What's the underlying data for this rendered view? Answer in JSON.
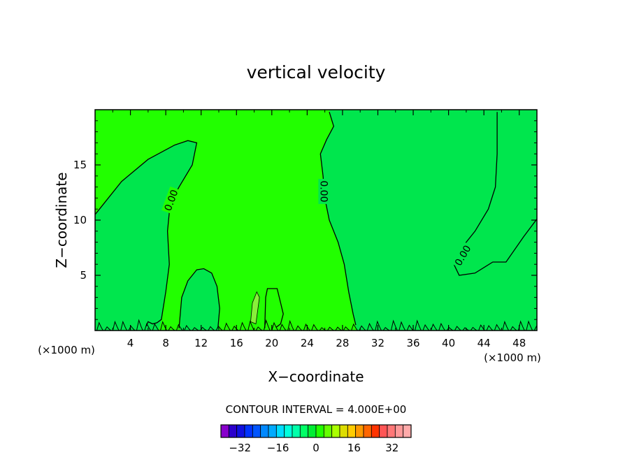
{
  "chart_data": {
    "type": "heatmap",
    "title": "vertical velocity",
    "xlabel": "X−coordinate",
    "ylabel": "Z−coordinate",
    "x_unit_left": "(×1000 m)",
    "x_unit_right": "(×1000 m)",
    "xlim": [
      0,
      50
    ],
    "ylim": [
      0,
      20
    ],
    "x_ticks": [
      4,
      8,
      12,
      16,
      20,
      24,
      28,
      32,
      36,
      40,
      44,
      48
    ],
    "y_ticks": [
      5,
      10,
      15
    ],
    "contour_label": "0.00",
    "contour_interval_text": "CONTOUR INTERVAL = 4.000E+00",
    "colors": {
      "positive_fill": "#22ff00",
      "negative_fill": "#00e64d",
      "weak_up_fill": "#88f03a"
    },
    "zero_contours": [
      {
        "name": "left-cell",
        "points": [
          [
            0,
            10.5
          ],
          [
            3,
            13.5
          ],
          [
            6,
            15.5
          ],
          [
            9,
            16.8
          ],
          [
            10.5,
            17.2
          ],
          [
            11.5,
            17
          ],
          [
            11,
            15
          ],
          [
            9.5,
            13
          ],
          [
            8.5,
            11.5
          ],
          [
            8.2,
            9
          ],
          [
            8.4,
            6
          ],
          [
            8,
            3.5
          ],
          [
            7.5,
            1
          ],
          [
            7,
            0.7
          ],
          [
            6.5,
            0.6
          ],
          [
            6,
            0.8
          ],
          [
            5.8,
            0.4
          ]
        ]
      },
      {
        "name": "middle-cell",
        "points": [
          [
            26.5,
            19.8
          ],
          [
            27,
            18.5
          ],
          [
            26.2,
            17.3
          ],
          [
            25.5,
            16
          ],
          [
            25.8,
            14
          ],
          [
            26,
            12
          ],
          [
            26.5,
            10
          ],
          [
            27.5,
            8
          ],
          [
            28.2,
            6
          ],
          [
            28.7,
            3.5
          ],
          [
            29.2,
            1.5
          ],
          [
            29.5,
            0.5
          ]
        ]
      },
      {
        "name": "right-cell",
        "points": [
          [
            45.5,
            19.8
          ],
          [
            45.5,
            16
          ],
          [
            45.3,
            13
          ],
          [
            44.5,
            11
          ],
          [
            43,
            9
          ],
          [
            41.5,
            7.5
          ],
          [
            40.6,
            6
          ],
          [
            41.2,
            5
          ],
          [
            43,
            5.2
          ],
          [
            45,
            6.2
          ],
          [
            46.5,
            6.2
          ],
          [
            48.5,
            8.5
          ],
          [
            50,
            10.1
          ]
        ]
      },
      {
        "name": "low-cell-1",
        "points": [
          [
            9.5,
            0.2
          ],
          [
            9.8,
            3
          ],
          [
            10.5,
            4.5
          ],
          [
            11.5,
            5.5
          ],
          [
            12.3,
            5.6
          ],
          [
            13.2,
            5.2
          ],
          [
            13.8,
            4
          ],
          [
            14.1,
            2
          ],
          [
            13.9,
            0.2
          ]
        ]
      },
      {
        "name": "low-cell-2",
        "points": [
          [
            19.2,
            0.2
          ],
          [
            19.3,
            3
          ],
          [
            19.5,
            3.8
          ],
          [
            20.6,
            3.8
          ],
          [
            21,
            2.5
          ],
          [
            21.3,
            1.5
          ],
          [
            21,
            0.6
          ],
          [
            20.5,
            0.3
          ]
        ]
      }
    ],
    "negative_regions": [
      {
        "points": [
          [
            0,
            0
          ],
          [
            0,
            10.5
          ],
          [
            3,
            13.5
          ],
          [
            6,
            15.5
          ],
          [
            9,
            16.8
          ],
          [
            10.5,
            17.2
          ],
          [
            11.5,
            17
          ],
          [
            11,
            15
          ],
          [
            9.5,
            13
          ],
          [
            8.5,
            11.5
          ],
          [
            8.2,
            9
          ],
          [
            8.4,
            6
          ],
          [
            8,
            3.5
          ],
          [
            7.5,
            1
          ],
          [
            7.2,
            0
          ]
        ]
      },
      {
        "points": [
          [
            9.6,
            0
          ],
          [
            9.8,
            3
          ],
          [
            10.5,
            4.5
          ],
          [
            11.5,
            5.5
          ],
          [
            12.3,
            5.6
          ],
          [
            13.2,
            5.2
          ],
          [
            13.8,
            4
          ],
          [
            14.1,
            2
          ],
          [
            14,
            0
          ]
        ]
      },
      {
        "points": [
          [
            26.5,
            20
          ],
          [
            27,
            18.5
          ],
          [
            26.2,
            17.3
          ],
          [
            25.5,
            16
          ],
          [
            25.8,
            14
          ],
          [
            26,
            12
          ],
          [
            26.5,
            10
          ],
          [
            27.5,
            8
          ],
          [
            28.2,
            6
          ],
          [
            28.7,
            3.5
          ],
          [
            29.2,
            1.5
          ],
          [
            29.6,
            0
          ],
          [
            40.6,
            0
          ],
          [
            40.6,
            6
          ],
          [
            41.2,
            5
          ],
          [
            43,
            5.2
          ],
          [
            45,
            6.2
          ],
          [
            46.5,
            6.2
          ],
          [
            48.5,
            8.5
          ],
          [
            50,
            10.1
          ],
          [
            50,
            0
          ],
          [
            50,
            0
          ],
          [
            50,
            20
          ]
        ]
      },
      {
        "points": [
          [
            29.6,
            0
          ],
          [
            50,
            0
          ],
          [
            50,
            10.1
          ],
          [
            48.5,
            8.5
          ],
          [
            46.5,
            6.2
          ],
          [
            45,
            6.2
          ],
          [
            43,
            5.2
          ],
          [
            41.2,
            5
          ],
          [
            40.6,
            6
          ],
          [
            41.5,
            7.5
          ],
          [
            43,
            9
          ],
          [
            44.5,
            11
          ],
          [
            45.3,
            13
          ],
          [
            45.5,
            16
          ],
          [
            45.5,
            20
          ],
          [
            26.5,
            20
          ],
          [
            27,
            18.5
          ],
          [
            26.2,
            17.3
          ],
          [
            25.5,
            16
          ],
          [
            25.8,
            14
          ],
          [
            26,
            12
          ],
          [
            26.5,
            10
          ],
          [
            27.5,
            8
          ],
          [
            28.2,
            6
          ],
          [
            28.7,
            3.5
          ],
          [
            29.2,
            1.5
          ]
        ]
      }
    ],
    "weak_updraft_region": {
      "points": [
        [
          18.2,
          0.6
        ],
        [
          18.6,
          3
        ],
        [
          18.3,
          3.5
        ],
        [
          17.8,
          2.5
        ],
        [
          17.6,
          0.8
        ]
      ]
    },
    "contour_labels_at": [
      [
        8.6,
        11.8,
        -70
      ],
      [
        25.9,
        12.6,
        90
      ],
      [
        41.6,
        6.8,
        -60
      ]
    ],
    "legend": {
      "tick_labels": [
        "−32",
        "−16",
        "0",
        "16",
        "32"
      ],
      "tick_values": [
        -32,
        -16,
        0,
        16,
        32
      ],
      "min": -40,
      "max": 40,
      "colors": [
        "#8800cc",
        "#2b00cc",
        "#1010e0",
        "#0033ff",
        "#0055ff",
        "#0088ff",
        "#00aaff",
        "#00ddff",
        "#00ffdd",
        "#00ffaa",
        "#00ff66",
        "#00ee33",
        "#22ff00",
        "#66ff00",
        "#aaff00",
        "#dddd00",
        "#ffcc00",
        "#ff9900",
        "#ff6600",
        "#ff3300",
        "#ff5555",
        "#ff7777",
        "#ff9999",
        "#ffaaaa"
      ]
    }
  }
}
